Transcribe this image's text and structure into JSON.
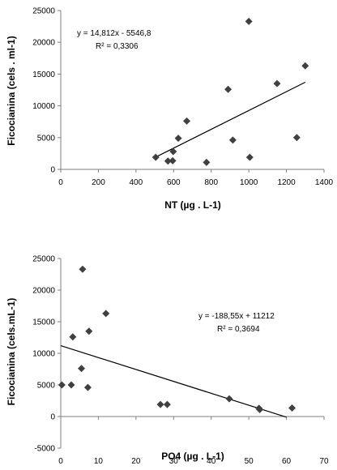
{
  "chart_data": [
    {
      "type": "scatter",
      "xlabel": "NT (µg . L-1)",
      "ylabel": "Ficocianina (cels . ml-1)",
      "xlim": [
        0,
        1400
      ],
      "ylim": [
        0,
        25000
      ],
      "xticks": [
        0,
        200,
        400,
        600,
        800,
        1000,
        1200,
        1400
      ],
      "yticks": [
        0,
        5000,
        10000,
        15000,
        20000,
        25000
      ],
      "xtick_labels": [
        "0",
        "200",
        "400",
        "600",
        "800",
        "1000",
        "1200",
        "1400"
      ],
      "ytick_labels": [
        "0",
        "5000",
        "10000",
        "15000",
        "20000",
        "25000"
      ],
      "grid": false,
      "marker_color": "#404040",
      "points": [
        {
          "x": 505,
          "y": 1900
        },
        {
          "x": 570,
          "y": 1300
        },
        {
          "x": 595,
          "y": 1350
        },
        {
          "x": 598,
          "y": 2800
        },
        {
          "x": 625,
          "y": 4900
        },
        {
          "x": 670,
          "y": 7600
        },
        {
          "x": 775,
          "y": 1100
        },
        {
          "x": 890,
          "y": 12600
        },
        {
          "x": 915,
          "y": 4600
        },
        {
          "x": 1000,
          "y": 23300
        },
        {
          "x": 1005,
          "y": 1900
        },
        {
          "x": 1150,
          "y": 13500
        },
        {
          "x": 1255,
          "y": 5000
        },
        {
          "x": 1300,
          "y": 16300
        }
      ],
      "trendline": {
        "slope": 14.812,
        "intercept": -5546.8,
        "x_range": [
          500,
          1300
        ]
      },
      "equation": "y = 14,812x - 5546,8",
      "r2": "R² = 0,3306"
    },
    {
      "type": "scatter",
      "xlabel": "PO4 (µg . L-1)",
      "ylabel": "Ficocianina (cels.mL-1)",
      "xlim": [
        0,
        70
      ],
      "ylim": [
        -5000,
        25000
      ],
      "xticks": [
        0,
        10,
        20,
        30,
        40,
        50,
        60,
        70
      ],
      "yticks": [
        -5000,
        0,
        5000,
        10000,
        15000,
        20000,
        25000
      ],
      "xtick_labels": [
        "0",
        "10",
        "20",
        "30",
        "40",
        "50",
        "60",
        "70"
      ],
      "ytick_labels": [
        "-5000",
        "0",
        "5000",
        "10000",
        "15000",
        "20000",
        "25000"
      ],
      "grid": false,
      "marker_color": "#404040",
      "points": [
        {
          "x": 0.3,
          "y": 5000
        },
        {
          "x": 2.8,
          "y": 5000
        },
        {
          "x": 3.2,
          "y": 12600
        },
        {
          "x": 5.5,
          "y": 7600
        },
        {
          "x": 5.8,
          "y": 23300
        },
        {
          "x": 7.2,
          "y": 4600
        },
        {
          "x": 7.5,
          "y": 13500
        },
        {
          "x": 12.0,
          "y": 16300
        },
        {
          "x": 26.5,
          "y": 1900
        },
        {
          "x": 28.3,
          "y": 1900
        },
        {
          "x": 44.8,
          "y": 2800
        },
        {
          "x": 52.7,
          "y": 1300
        },
        {
          "x": 52.9,
          "y": 1100
        },
        {
          "x": 61.5,
          "y": 1350
        }
      ],
      "trendline": {
        "slope": -188.55,
        "intercept": 11212,
        "x_range": [
          0,
          60
        ]
      },
      "equation": "y = -188,55x + 11212",
      "r2": "R² = 0,3694"
    }
  ]
}
